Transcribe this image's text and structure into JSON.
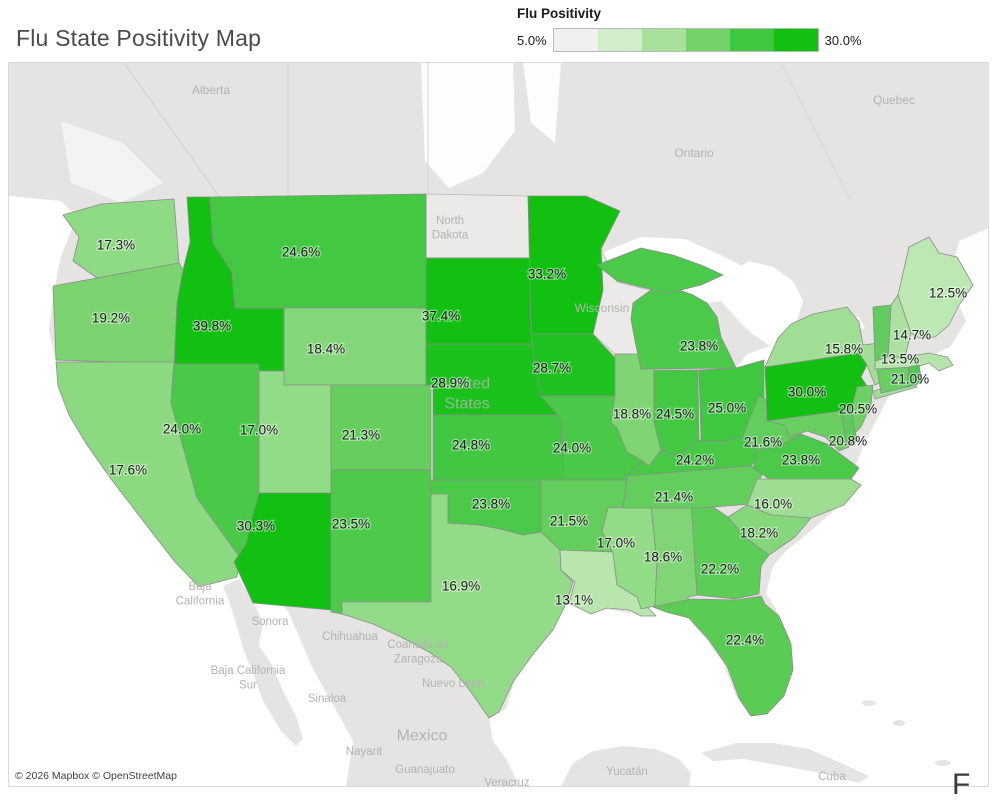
{
  "page": {
    "title": "Flu State Positivity Map",
    "stray_text": "F"
  },
  "chart_data": {
    "type": "choropleth_map",
    "title": "Flu State Positivity Map",
    "region": "United States",
    "metric": "Flu Positivity",
    "unit": "percent",
    "legend": {
      "title": "Flu Positivity",
      "min": 5.0,
      "max": 30.0,
      "min_label": "5.0%",
      "max_label": "30.0%",
      "swatches": [
        "#f0f0f0",
        "#d2edca",
        "#a8e19c",
        "#72d168",
        "#3fc73f",
        "#12c012"
      ]
    },
    "no_data_color": "#ebeae8",
    "states": [
      {
        "code": "WA",
        "name": "Washington",
        "value": 17.3,
        "label": "17.3%"
      },
      {
        "code": "OR",
        "name": "Oregon",
        "value": 19.2,
        "label": "19.2%"
      },
      {
        "code": "CA",
        "name": "California",
        "value": 17.6,
        "label": "17.6%"
      },
      {
        "code": "ID",
        "name": "Idaho",
        "value": 39.8,
        "label": "39.8%"
      },
      {
        "code": "NV",
        "name": "Nevada",
        "value": 24.0,
        "label": "24.0%"
      },
      {
        "code": "MT",
        "name": "Montana",
        "value": 24.6,
        "label": "24.6%"
      },
      {
        "code": "WY",
        "name": "Wyoming",
        "value": 18.4,
        "label": "18.4%"
      },
      {
        "code": "UT",
        "name": "Utah",
        "value": 17.0,
        "label": "17.0%"
      },
      {
        "code": "CO",
        "name": "Colorado",
        "value": 21.3,
        "label": "21.3%"
      },
      {
        "code": "AZ",
        "name": "Arizona",
        "value": 30.3,
        "label": "30.3%"
      },
      {
        "code": "NM",
        "name": "New Mexico",
        "value": 23.5,
        "label": "23.5%"
      },
      {
        "code": "TX",
        "name": "Texas",
        "value": 16.9,
        "label": "16.9%"
      },
      {
        "code": "OK",
        "name": "Oklahoma",
        "value": 23.8,
        "label": "23.8%"
      },
      {
        "code": "KS",
        "name": "Kansas",
        "value": 24.8,
        "label": "24.8%"
      },
      {
        "code": "NE",
        "name": "Nebraska",
        "value": 28.9,
        "label": "28.9%"
      },
      {
        "code": "SD",
        "name": "South Dakota",
        "value": 37.4,
        "label": "37.4%"
      },
      {
        "code": "MN",
        "name": "Minnesota",
        "value": 33.2,
        "label": "33.2%"
      },
      {
        "code": "IA",
        "name": "Iowa",
        "value": 28.7,
        "label": "28.7%"
      },
      {
        "code": "MO",
        "name": "Missouri",
        "value": 24.0,
        "label": "24.0%"
      },
      {
        "code": "AR",
        "name": "Arkansas",
        "value": 21.5,
        "label": "21.5%"
      },
      {
        "code": "LA",
        "name": "Louisiana",
        "value": 13.1,
        "label": "13.1%"
      },
      {
        "code": "MS",
        "name": "Mississippi",
        "value": 17.0,
        "label": "17.0%"
      },
      {
        "code": "AL",
        "name": "Alabama",
        "value": 18.6,
        "label": "18.6%"
      },
      {
        "code": "GA",
        "name": "Georgia",
        "value": 22.2,
        "label": "22.2%"
      },
      {
        "code": "FL",
        "name": "Florida",
        "value": 22.4,
        "label": "22.4%"
      },
      {
        "code": "IL",
        "name": "Illinois",
        "value": 18.8,
        "label": "18.8%"
      },
      {
        "code": "IN",
        "name": "Indiana",
        "value": 24.5,
        "label": "24.5%"
      },
      {
        "code": "OH",
        "name": "Ohio",
        "value": 25.0,
        "label": "25.0%"
      },
      {
        "code": "MI",
        "name": "Michigan",
        "value": 23.8,
        "label": "23.8%"
      },
      {
        "code": "KY",
        "name": "Kentucky",
        "value": 24.2,
        "label": "24.2%"
      },
      {
        "code": "TN",
        "name": "Tennessee",
        "value": 21.4,
        "label": "21.4%"
      },
      {
        "code": "WV",
        "name": "West Virginia",
        "value": 21.6,
        "label": "21.6%"
      },
      {
        "code": "VA",
        "name": "Virginia",
        "value": 23.8,
        "label": "23.8%"
      },
      {
        "code": "NC",
        "name": "North Carolina",
        "value": 16.0,
        "label": "16.0%"
      },
      {
        "code": "SC",
        "name": "South Carolina",
        "value": 18.2,
        "label": "18.2%"
      },
      {
        "code": "PA",
        "name": "Pennsylvania",
        "value": 30.0,
        "label": "30.0%"
      },
      {
        "code": "NY",
        "name": "New York",
        "value": 15.8,
        "label": "15.8%"
      },
      {
        "code": "NJ",
        "name": "New Jersey",
        "value": 20.5,
        "label": "20.5%"
      },
      {
        "code": "MD",
        "name": "Maryland",
        "value": 20.8,
        "label": "20.8%"
      },
      {
        "code": "CT",
        "name": "Connecticut",
        "value": 21.0,
        "label": "21.0%"
      },
      {
        "code": "MA",
        "name": "Massachusetts",
        "value": 13.5,
        "label": "13.5%"
      },
      {
        "code": "NH",
        "name": "New Hampshire",
        "value": 14.7,
        "label": "14.7%"
      },
      {
        "code": "ME",
        "name": "Maine",
        "value": 12.5,
        "label": "12.5%"
      }
    ],
    "states_without_labels": [
      {
        "code": "VT",
        "name": "Vermont",
        "color": "#62cc60"
      },
      {
        "code": "DE",
        "name": "Delaware",
        "color": "#5cca5c"
      },
      {
        "code": "RI",
        "name": "Rhode Island",
        "color": "#50c755"
      }
    ],
    "no_data_states": [
      {
        "code": "ND",
        "name": "North Dakota"
      },
      {
        "code": "WI",
        "name": "Wisconsin"
      }
    ],
    "basemap_labels": [
      "Alberta",
      "Ontario",
      "Quebec",
      "North Dakota",
      "Wisconsin",
      "United States",
      "Baja California",
      "Sonora",
      "Chihuahua",
      "Coahuila de Zaragoza",
      "Baja California Sur",
      "Sinaloa",
      "Nuevo León",
      "Mexico",
      "Nayarit",
      "Guanajuato",
      "Yucatán",
      "Veracruz",
      "Cuba"
    ],
    "attribution": "© 2026 Mapbox © OpenStreetMap"
  }
}
